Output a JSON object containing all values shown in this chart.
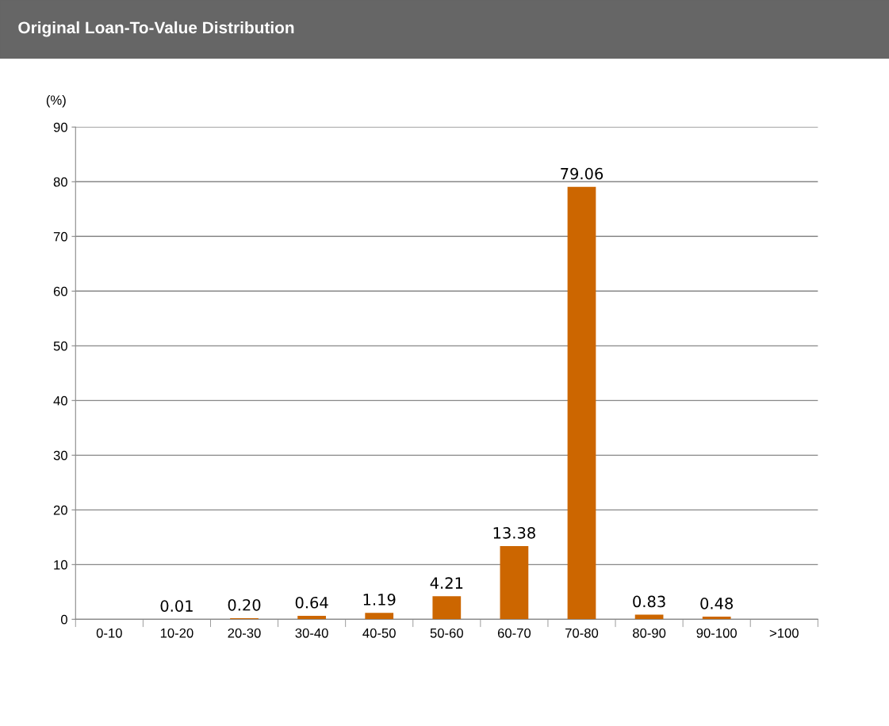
{
  "chart_data": {
    "type": "bar",
    "title": "Original Loan-To-Value Distribution",
    "ylabel": "(%)",
    "categories": [
      "0-10",
      "10-20",
      "20-30",
      "30-40",
      "40-50",
      "50-60",
      "60-70",
      "70-80",
      "80-90",
      "90-100",
      ">100"
    ],
    "values": [
      null,
      0.01,
      0.2,
      0.64,
      1.19,
      4.21,
      13.38,
      79.06,
      0.83,
      0.48,
      null
    ],
    "value_labels": [
      null,
      "0.01",
      "0.20",
      "0.64",
      "1.19",
      "4.21",
      "13.38",
      "79.06",
      "0.83",
      "0.48",
      null
    ],
    "color": "#cc6600",
    "ylim": [
      0,
      90
    ],
    "yticks": [
      0,
      10,
      20,
      30,
      40,
      50,
      60,
      70,
      80,
      90
    ],
    "grid": "y",
    "legend": false
  }
}
